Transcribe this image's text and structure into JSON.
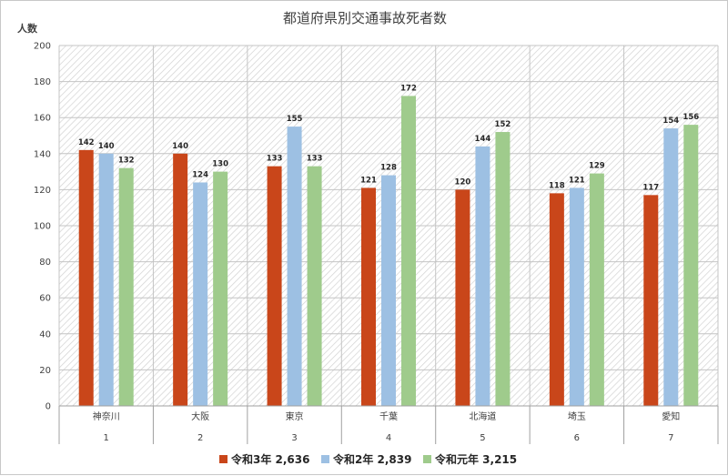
{
  "chart_data": {
    "type": "bar",
    "title": "都道府県別交通事故死者数",
    "ylabel": "人数",
    "ylim": [
      0,
      200
    ],
    "ytick_step": 20,
    "yticks": [
      "0",
      "20",
      "40",
      "60",
      "80",
      "100",
      "120",
      "140",
      "160",
      "180",
      "200"
    ],
    "grid": true,
    "legend_position": "bottom",
    "categories": [
      "神奈川",
      "大阪",
      "東京",
      "千葉",
      "北海道",
      "埼玉",
      "愛知"
    ],
    "category_numbers": [
      "1",
      "2",
      "3",
      "4",
      "5",
      "6",
      "7"
    ],
    "series": [
      {
        "name": "令和3年 2,636",
        "color": "#c9461a",
        "values": [
          142,
          140,
          133,
          121,
          120,
          118,
          117
        ]
      },
      {
        "name": "令和2年 2,839",
        "color": "#9dc0e3",
        "values": [
          140,
          124,
          155,
          128,
          144,
          121,
          154
        ]
      },
      {
        "name": "令和元年 3,215",
        "color": "#9fcb8c",
        "values": [
          132,
          130,
          133,
          172,
          152,
          129,
          156
        ]
      }
    ]
  }
}
